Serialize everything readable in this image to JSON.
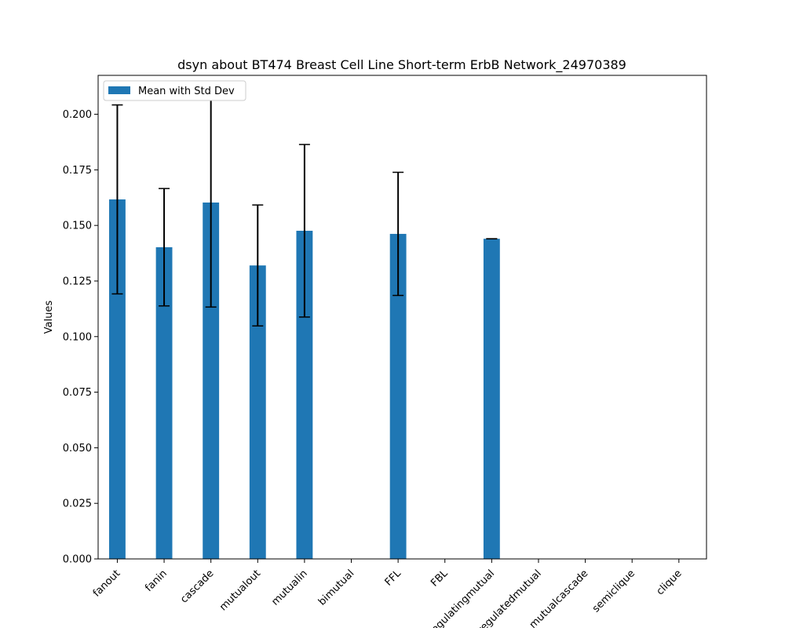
{
  "chart_data": {
    "type": "bar",
    "title": "dsyn about BT474 Breast Cell Line Short-term ErbB Network_24970389",
    "xlabel": "",
    "ylabel": "Values",
    "ylim": [
      0,
      0.2175
    ],
    "yticks": [
      "0.000",
      "0.025",
      "0.050",
      "0.075",
      "0.100",
      "0.125",
      "0.150",
      "0.175",
      "0.200"
    ],
    "categories": [
      "fanout",
      "fanin",
      "cascade",
      "mutualout",
      "mutualin",
      "bimutual",
      "FFL",
      "FBL",
      "regulatingmutual",
      "regulatedmutual",
      "mutualcascade",
      "semiclique",
      "clique"
    ],
    "series": [
      {
        "name": "Mean with Std Dev",
        "color": "#1f77b4",
        "values": [
          0.1617,
          0.1402,
          0.1603,
          0.132,
          0.1476,
          0,
          0.1462,
          0,
          0.144,
          0,
          0,
          0,
          0
        ],
        "std": [
          0.0425,
          0.0264,
          0.047,
          0.0272,
          0.0388,
          0,
          0.0277,
          0,
          0,
          0,
          0,
          0,
          0
        ]
      }
    ],
    "legend_position": "top-left",
    "grid": false
  }
}
